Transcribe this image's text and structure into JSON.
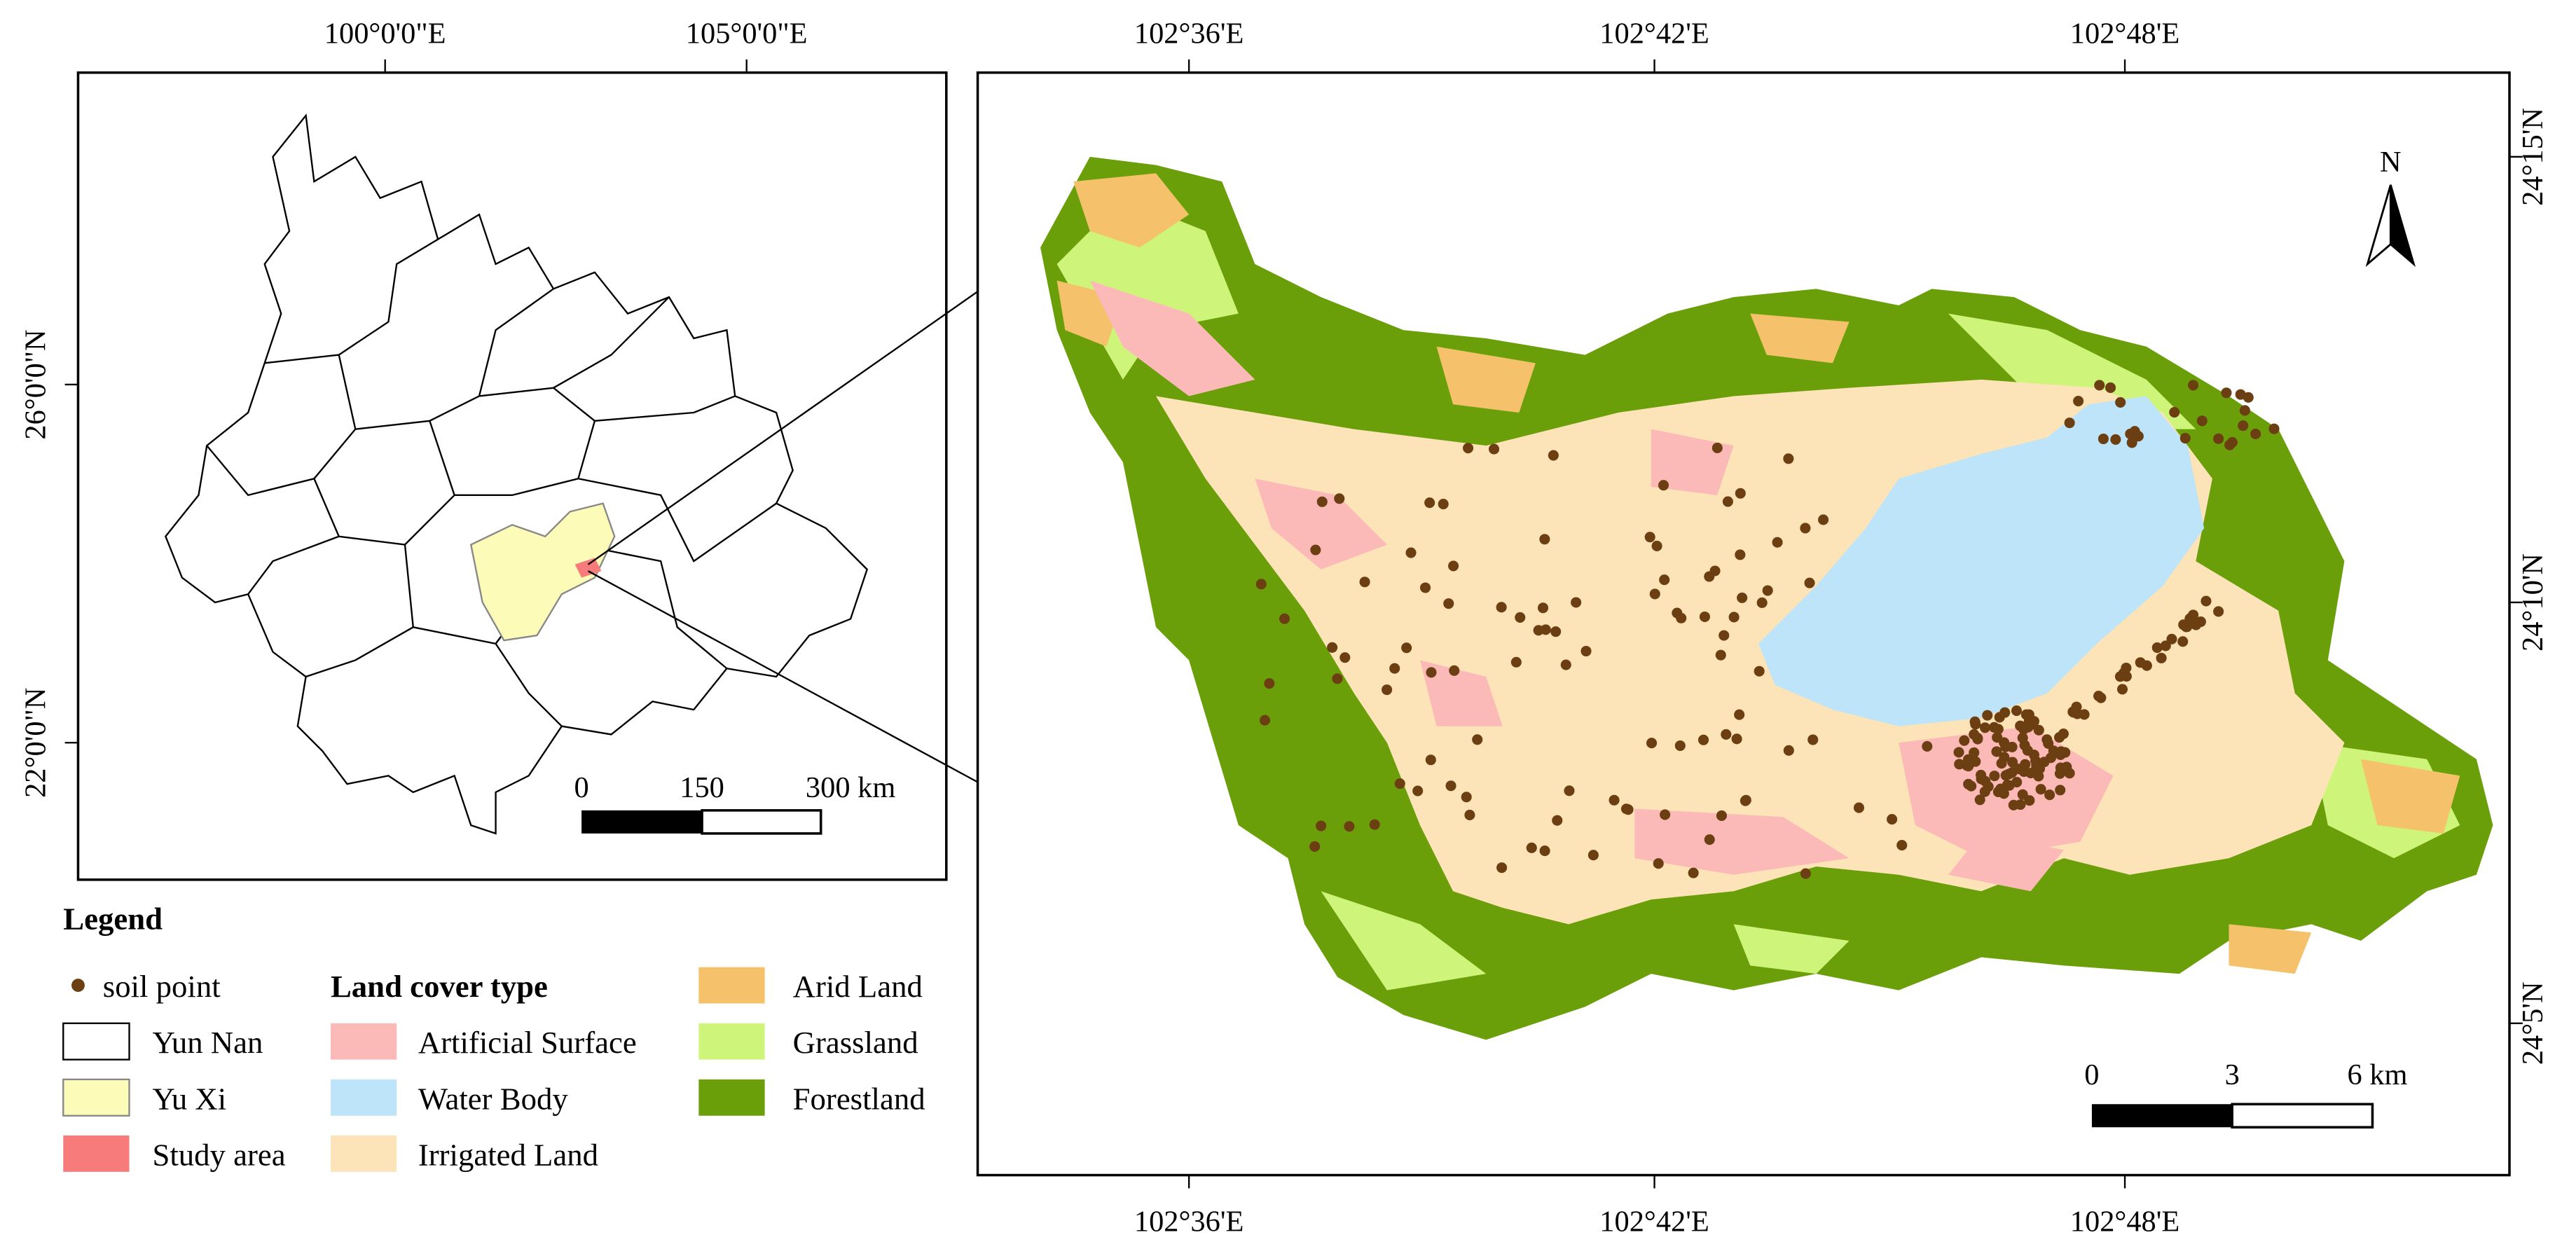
{
  "inset_map": {
    "x_labels": [
      "100°0'0\"E",
      "105°0'0\"E"
    ],
    "y_labels": [
      "26°0'0\"N",
      "22°0'0\"N"
    ],
    "scale_labels": [
      "0",
      "150",
      "300 km"
    ]
  },
  "main_map": {
    "x_labels": [
      "102°36'E",
      "102°42'E",
      "102°48'E"
    ],
    "y_labels": [
      "24°15'N",
      "24°10'N",
      "24°5'N"
    ],
    "north_label": "N",
    "scale_labels": [
      "0",
      "3",
      "6 km"
    ]
  },
  "legend": {
    "title": "Legend",
    "group_title": "Land cover type",
    "items": [
      {
        "label": "soil point",
        "color": "#6b3f12"
      },
      {
        "label": "Yun Nan",
        "color": "#ffffff"
      },
      {
        "label": "Yu Xi",
        "color": "#fdfbb8"
      },
      {
        "label": "Study area",
        "color": "#f77b7b"
      },
      {
        "label": "Artificial Surface",
        "color": "#fbbab8"
      },
      {
        "label": "Water Body",
        "color": "#bde4f8"
      },
      {
        "label": "Irrigated Land",
        "color": "#fde3b8"
      },
      {
        "label": "Arid Land",
        "color": "#f5c26b"
      },
      {
        "label": "Grassland",
        "color": "#cef57a"
      },
      {
        "label": "Forestland",
        "color": "#6a9f0a"
      }
    ]
  }
}
